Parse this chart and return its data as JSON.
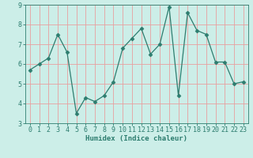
{
  "x": [
    0,
    1,
    2,
    3,
    4,
    5,
    6,
    7,
    8,
    9,
    10,
    11,
    12,
    13,
    14,
    15,
    16,
    17,
    18,
    19,
    20,
    21,
    22,
    23
  ],
  "y": [
    5.7,
    6.0,
    6.3,
    7.5,
    6.6,
    3.5,
    4.3,
    4.1,
    4.4,
    5.1,
    6.8,
    7.3,
    7.8,
    6.5,
    7.0,
    8.9,
    4.4,
    8.6,
    7.7,
    7.5,
    6.1,
    6.1,
    5.0,
    5.1
  ],
  "line_color": "#2d7d6f",
  "marker": "D",
  "marker_size": 2.5,
  "bg_color": "#cceee8",
  "grid_color": "#e8a0a0",
  "xlabel": "Humidex (Indice chaleur)",
  "xlabel_fontsize": 6.5,
  "xlabel_color": "#2d7d6f",
  "tick_color": "#2d7d6f",
  "tick_fontsize": 6.0,
  "ylim": [
    3,
    9
  ],
  "xlim": [
    -0.5,
    23.5
  ],
  "yticks": [
    3,
    4,
    5,
    6,
    7,
    8,
    9
  ],
  "xticks": [
    0,
    1,
    2,
    3,
    4,
    5,
    6,
    7,
    8,
    9,
    10,
    11,
    12,
    13,
    14,
    15,
    16,
    17,
    18,
    19,
    20,
    21,
    22,
    23
  ]
}
